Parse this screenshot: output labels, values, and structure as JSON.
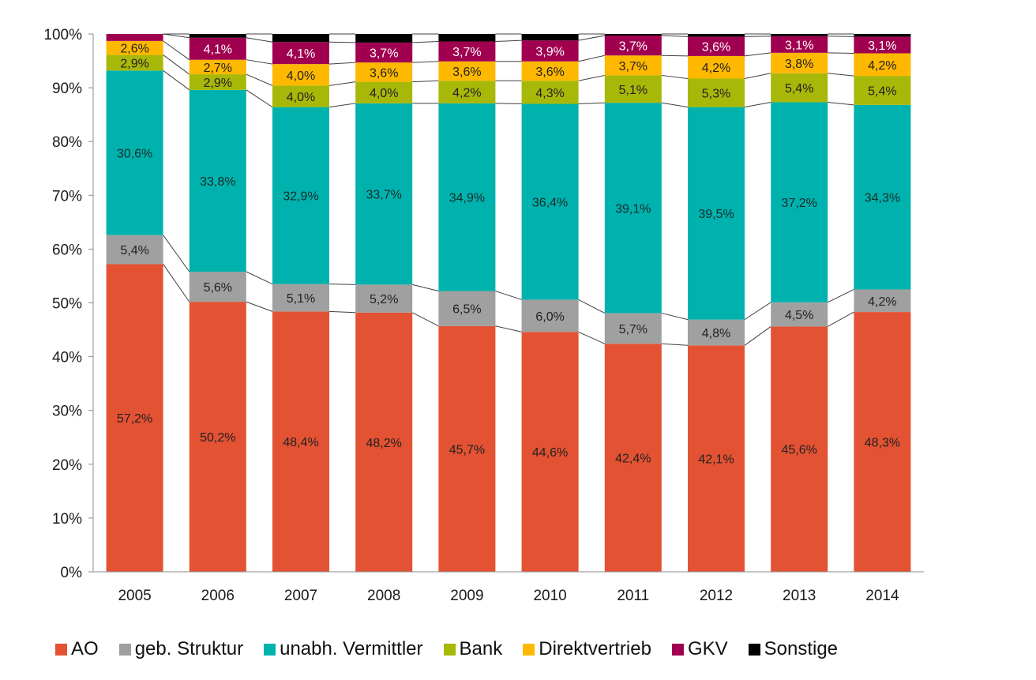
{
  "chart_data": {
    "type": "bar",
    "stacked": true,
    "percent": true,
    "title": "",
    "xlabel": "",
    "ylabel": "",
    "ylim": [
      0,
      100
    ],
    "yticks": [
      "0%",
      "10%",
      "20%",
      "30%",
      "40%",
      "50%",
      "60%",
      "70%",
      "80%",
      "90%",
      "100%"
    ],
    "grid": false,
    "legend": "bottom",
    "categories": [
      "2005",
      "2006",
      "2007",
      "2008",
      "2009",
      "2010",
      "2011",
      "2012",
      "2013",
      "2014"
    ],
    "series": [
      {
        "name": "AO",
        "color": "#e35233",
        "label_color": "#222222",
        "values": [
          57.2,
          50.2,
          48.4,
          48.2,
          45.7,
          44.6,
          42.4,
          42.1,
          45.6,
          48.3
        ],
        "labels": [
          "57,2%",
          "50,2%",
          "48,4%",
          "48,2%",
          "45,7%",
          "44,6%",
          "42,4%",
          "42,1%",
          "45,6%",
          "48,3%"
        ]
      },
      {
        "name": "geb. Struktur",
        "color": "#a0a0a0",
        "label_color": "#222222",
        "values": [
          5.4,
          5.6,
          5.1,
          5.2,
          6.5,
          6.0,
          5.7,
          4.8,
          4.5,
          4.2
        ],
        "labels": [
          "5,4%",
          "5,6%",
          "5,1%",
          "5,2%",
          "6,5%",
          "6,0%",
          "5,7%",
          "4,8%",
          "4,5%",
          "4,2%"
        ]
      },
      {
        "name": "unabh. Vermittler",
        "color": "#00b2ad",
        "label_color": "#1a2b2b",
        "values": [
          30.6,
          33.8,
          32.9,
          33.7,
          34.9,
          36.4,
          39.1,
          39.5,
          37.2,
          34.3
        ],
        "labels": [
          "30,6%",
          "33,8%",
          "32,9%",
          "33,7%",
          "34,9%",
          "36,4%",
          "39,1%",
          "39,5%",
          "37,2%",
          "34,3%"
        ]
      },
      {
        "name": "Bank",
        "color": "#a8b808",
        "label_color": "#222222",
        "values": [
          2.9,
          2.9,
          4.0,
          4.0,
          4.2,
          4.3,
          5.1,
          5.3,
          5.4,
          5.4
        ],
        "labels": [
          "2,9%",
          "2,9%",
          "4,0%",
          "4,0%",
          "4,2%",
          "4,3%",
          "5,1%",
          "5,3%",
          "5,4%",
          "5,4%"
        ]
      },
      {
        "name": "Direktvertrieb",
        "color": "#ffb800",
        "label_color": "#222222",
        "values": [
          2.6,
          2.7,
          4.0,
          3.6,
          3.6,
          3.6,
          3.7,
          4.2,
          3.8,
          4.2
        ],
        "labels": [
          "2,6%",
          "2,7%",
          "4,0%",
          "3,6%",
          "3,6%",
          "3,6%",
          "3,7%",
          "4,2%",
          "3,8%",
          "4,2%"
        ]
      },
      {
        "name": "GKV",
        "color": "#a0004f",
        "label_color": "#ffffff",
        "values": [
          1.3,
          4.1,
          4.1,
          3.7,
          3.7,
          3.9,
          3.7,
          3.6,
          3.1,
          3.1
        ],
        "labels": [
          "",
          "4,1%",
          "4,1%",
          "3,7%",
          "3,7%",
          "3,9%",
          "3,7%",
          "3,6%",
          "3,1%",
          "3,1%"
        ]
      },
      {
        "name": "Sonstige",
        "color": "#000000",
        "label_color": "#ffffff",
        "values": [
          0.0,
          0.7,
          1.5,
          1.6,
          1.4,
          1.2,
          0.3,
          0.5,
          0.4,
          0.5
        ],
        "labels": [
          "",
          "",
          "",
          "",
          "",
          "",
          "",
          "",
          "",
          ""
        ]
      }
    ]
  }
}
